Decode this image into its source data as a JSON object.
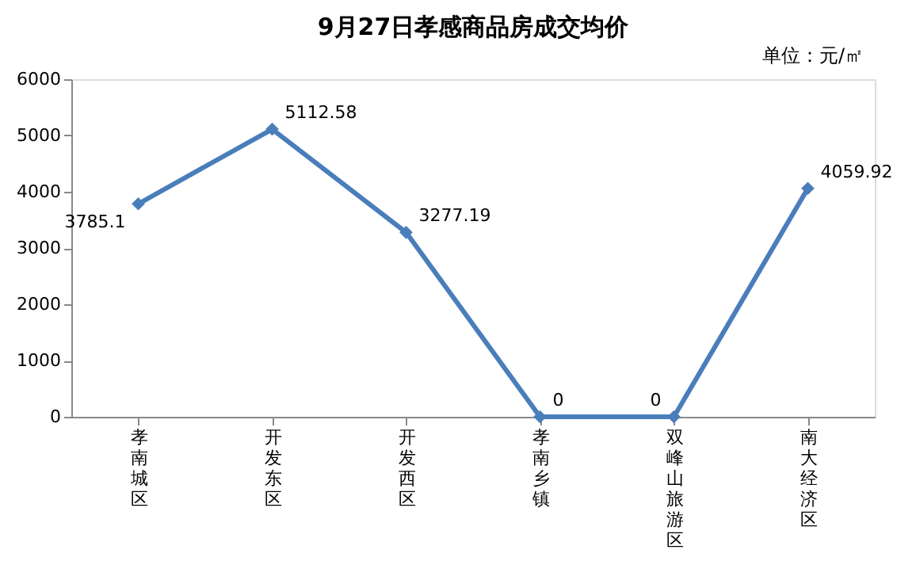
{
  "chart_data": {
    "type": "line",
    "title": "9月27日孝感商品房成交均价",
    "annotations": [
      "单位：元/㎡"
    ],
    "categories": [
      "孝南城区",
      "开发东区",
      "开发西区",
      "孝南乡镇",
      "双峰山旅游区",
      "南大经济区"
    ],
    "series": [
      {
        "color": "#4a7ebb",
        "values": [
          3785.1,
          5112.58,
          3277.19,
          0,
          0,
          4059.92
        ]
      }
    ],
    "ylim": [
      0,
      6000
    ],
    "yticks": [
      0,
      1000,
      2000,
      3000,
      4000,
      5000,
      6000
    ],
    "grid": false,
    "legend": false,
    "marker": "diamond",
    "line_style": "solid",
    "data_labels": true
  }
}
